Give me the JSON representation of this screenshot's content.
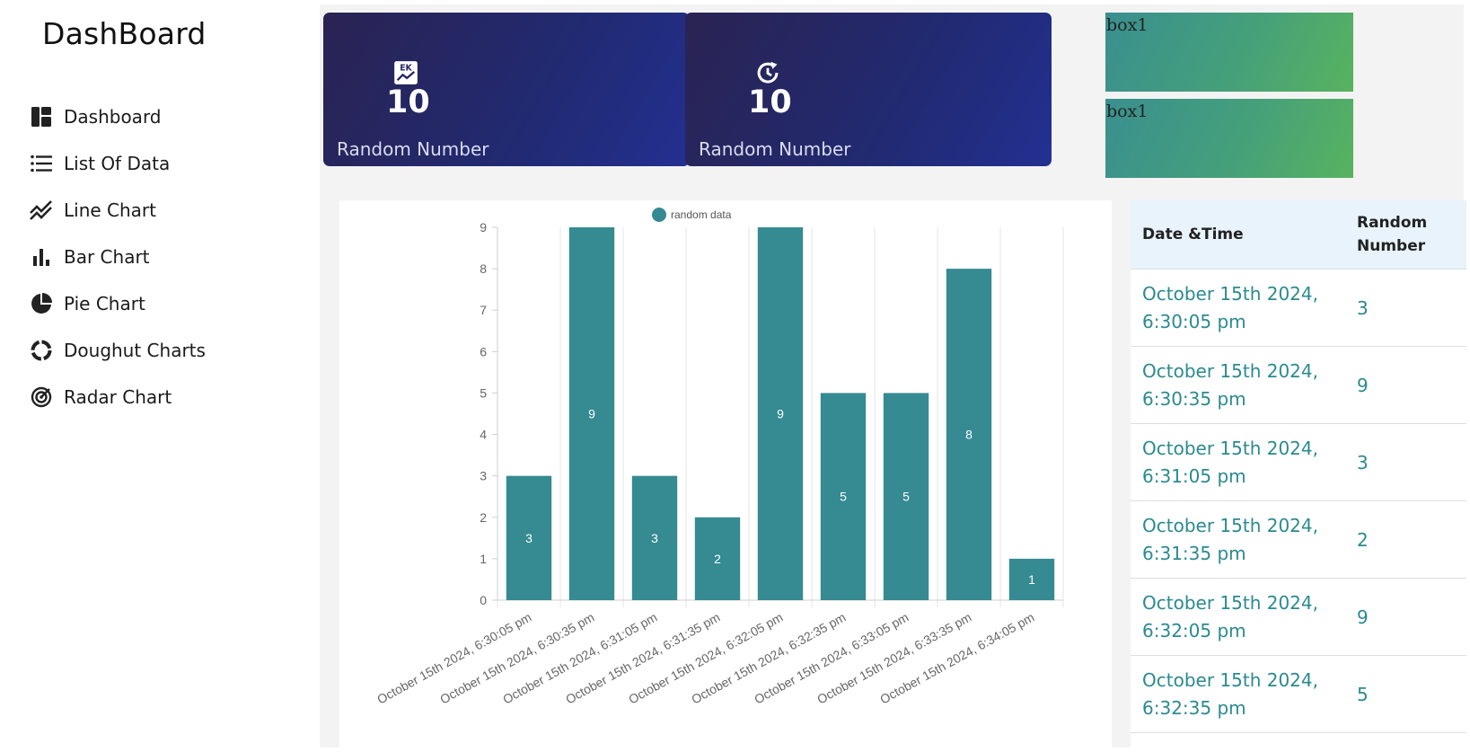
{
  "sidebar": {
    "brand": "DashBoard",
    "items": [
      {
        "label": "Dashboard",
        "icon": "dashboard-icon"
      },
      {
        "label": "List Of Data",
        "icon": "list-icon"
      },
      {
        "label": "Line Chart",
        "icon": "line-chart-icon"
      },
      {
        "label": "Bar Chart",
        "icon": "bar-chart-icon"
      },
      {
        "label": "Pie Chart",
        "icon": "pie-chart-icon"
      },
      {
        "label": "Doughut Charts",
        "icon": "donut-chart-icon"
      },
      {
        "label": "Radar Chart",
        "icon": "radar-chart-icon"
      }
    ]
  },
  "cards": [
    {
      "value": "10",
      "label": "Random Number",
      "icon": "chart-badge-icon"
    },
    {
      "value": "10",
      "label": "Random Number",
      "icon": "refresh-clock-icon"
    }
  ],
  "boxes": [
    {
      "label": "box1"
    },
    {
      "label": "box1"
    }
  ],
  "colors": {
    "card_gradient_start": "#2a2352",
    "card_gradient_end": "#233091",
    "box_gradient_start": "#3a8f8f",
    "box_gradient_end": "#58b35f",
    "bar": "#368a92",
    "table_text": "#2b8a8f",
    "table_header_bg": "#e8f3fc"
  },
  "chart_data": {
    "type": "bar",
    "title": "",
    "xlabel": "",
    "ylabel": "",
    "legend": {
      "label": "random data",
      "position": "top"
    },
    "ylim": [
      0,
      9
    ],
    "yticks": [
      "0",
      "1",
      "2",
      "3",
      "4",
      "5",
      "6",
      "7",
      "8",
      "9"
    ],
    "categories": [
      "October 15th 2024, 6:30:05 pm",
      "October 15th 2024, 6:30:35 pm",
      "October 15th 2024, 6:31:05 pm",
      "October 15th 2024, 6:31:35 pm",
      "October 15th 2024, 6:32:05 pm",
      "October 15th 2024, 6:32:35 pm",
      "October 15th 2024, 6:33:05 pm",
      "October 15th 2024, 6:33:35 pm",
      "October 15th 2024, 6:34:05 pm"
    ],
    "series": [
      {
        "name": "random data",
        "values": [
          3,
          9,
          3,
          2,
          9,
          5,
          5,
          8,
          1
        ]
      }
    ]
  },
  "table": {
    "headers": [
      "Date &Time",
      "Random Number"
    ],
    "header2_lines": [
      "Random",
      "Number"
    ],
    "rows": [
      {
        "date1": "October 15th 2024,",
        "date2": "6:30:05 pm",
        "value": "3"
      },
      {
        "date1": "October 15th 2024,",
        "date2": "6:30:35 pm",
        "value": "9"
      },
      {
        "date1": "October 15th 2024,",
        "date2": "6:31:05 pm",
        "value": "3"
      },
      {
        "date1": "October 15th 2024,",
        "date2": "6:31:35 pm",
        "value": "2"
      },
      {
        "date1": "October 15th 2024,",
        "date2": "6:32:05 pm",
        "value": "9"
      },
      {
        "date1": "October 15th 2024,",
        "date2": "6:32:35 pm",
        "value": "5"
      }
    ]
  }
}
